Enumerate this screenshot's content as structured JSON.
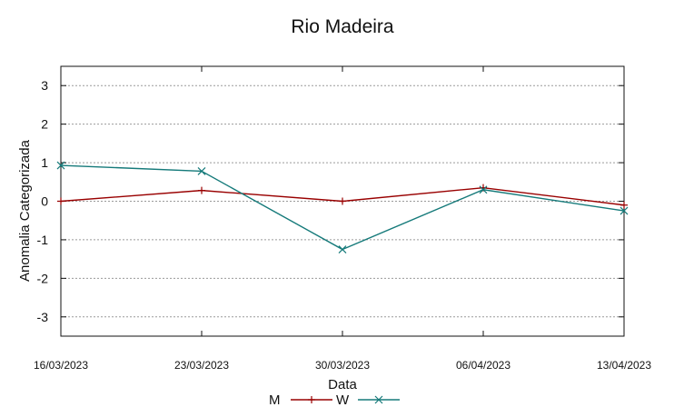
{
  "chart_data": {
    "type": "line",
    "title": "Rio Madeira",
    "xlabel": "Data",
    "ylabel": "Anomalia Categorizada",
    "ylim": [
      -3.5,
      3.5
    ],
    "yticks": [
      "3",
      "2",
      "1",
      "0",
      "-1",
      "-2",
      "-3"
    ],
    "ytick_values": [
      3,
      2,
      1,
      0,
      -1,
      -2,
      -3
    ],
    "x": [
      "16/03/2023",
      "23/03/2023",
      "30/03/2023",
      "06/04/2023",
      "13/04/2023"
    ],
    "grid": true,
    "legend_position": "bottom-center",
    "series": [
      {
        "name": "M",
        "color": "#990000",
        "marker": "plus",
        "values": [
          0.0,
          0.28,
          0.0,
          0.35,
          -0.1
        ]
      },
      {
        "name": "W",
        "color": "#157a7a",
        "marker": "cross",
        "values": [
          0.93,
          0.78,
          -1.25,
          0.3,
          -0.25
        ]
      }
    ]
  }
}
